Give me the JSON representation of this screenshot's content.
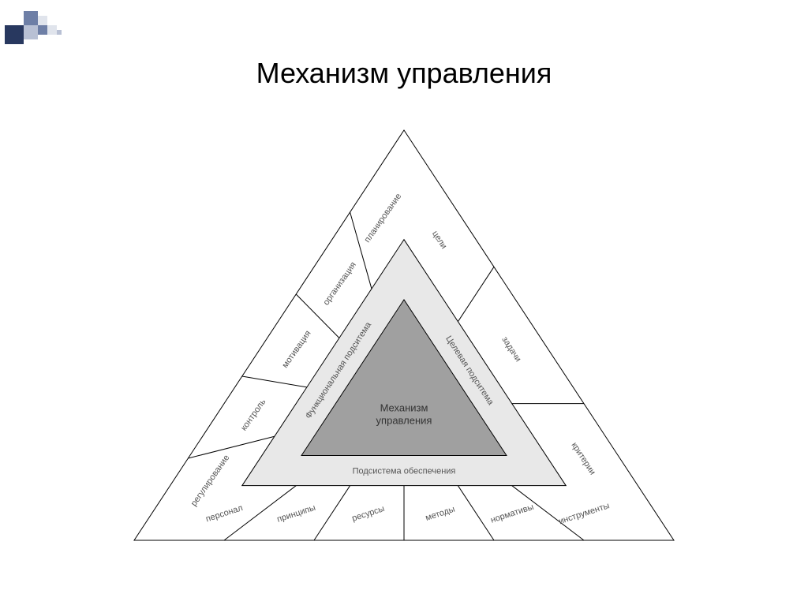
{
  "title": "Механизм управления",
  "diagram": {
    "type": "nested-triangle",
    "background_color": "#ffffff",
    "stroke_color": "#000000",
    "outer_triangle": {
      "fill": "#ffffff",
      "stroke": "#000000",
      "stroke_width": 1
    },
    "middle_triangle": {
      "fill": "#e8e8e8",
      "stroke": "#000000",
      "stroke_width": 1
    },
    "inner_triangle": {
      "fill": "#a0a0a0",
      "stroke": "#000000",
      "stroke_width": 1
    },
    "inner_label_line1": "Механизм",
    "inner_label_line2": "управления",
    "inner_label_fontsize": 13,
    "inner_label_color": "#333333",
    "middle_sides": {
      "left": "Функциональная подситема",
      "right": "Целевая подситема",
      "bottom": "Подсистема обеспечения"
    },
    "middle_label_fontsize": 11,
    "middle_label_color": "#555555",
    "outer_segments": {
      "left": [
        "регулирование",
        "контроль",
        "мотивация",
        "организация",
        "планирование"
      ],
      "right": [
        "цели",
        "задачи",
        "критерии"
      ],
      "bottom": [
        "персонал",
        "принципы",
        "ресурсы",
        "методы",
        "нормативы",
        "инструменты"
      ]
    },
    "outer_label_fontsize": 11,
    "outer_label_color": "#555555"
  },
  "corner_decoration": {
    "colors": [
      "#28385f",
      "#6e7fa6",
      "#b8c0d4",
      "#e0e4ec"
    ]
  }
}
